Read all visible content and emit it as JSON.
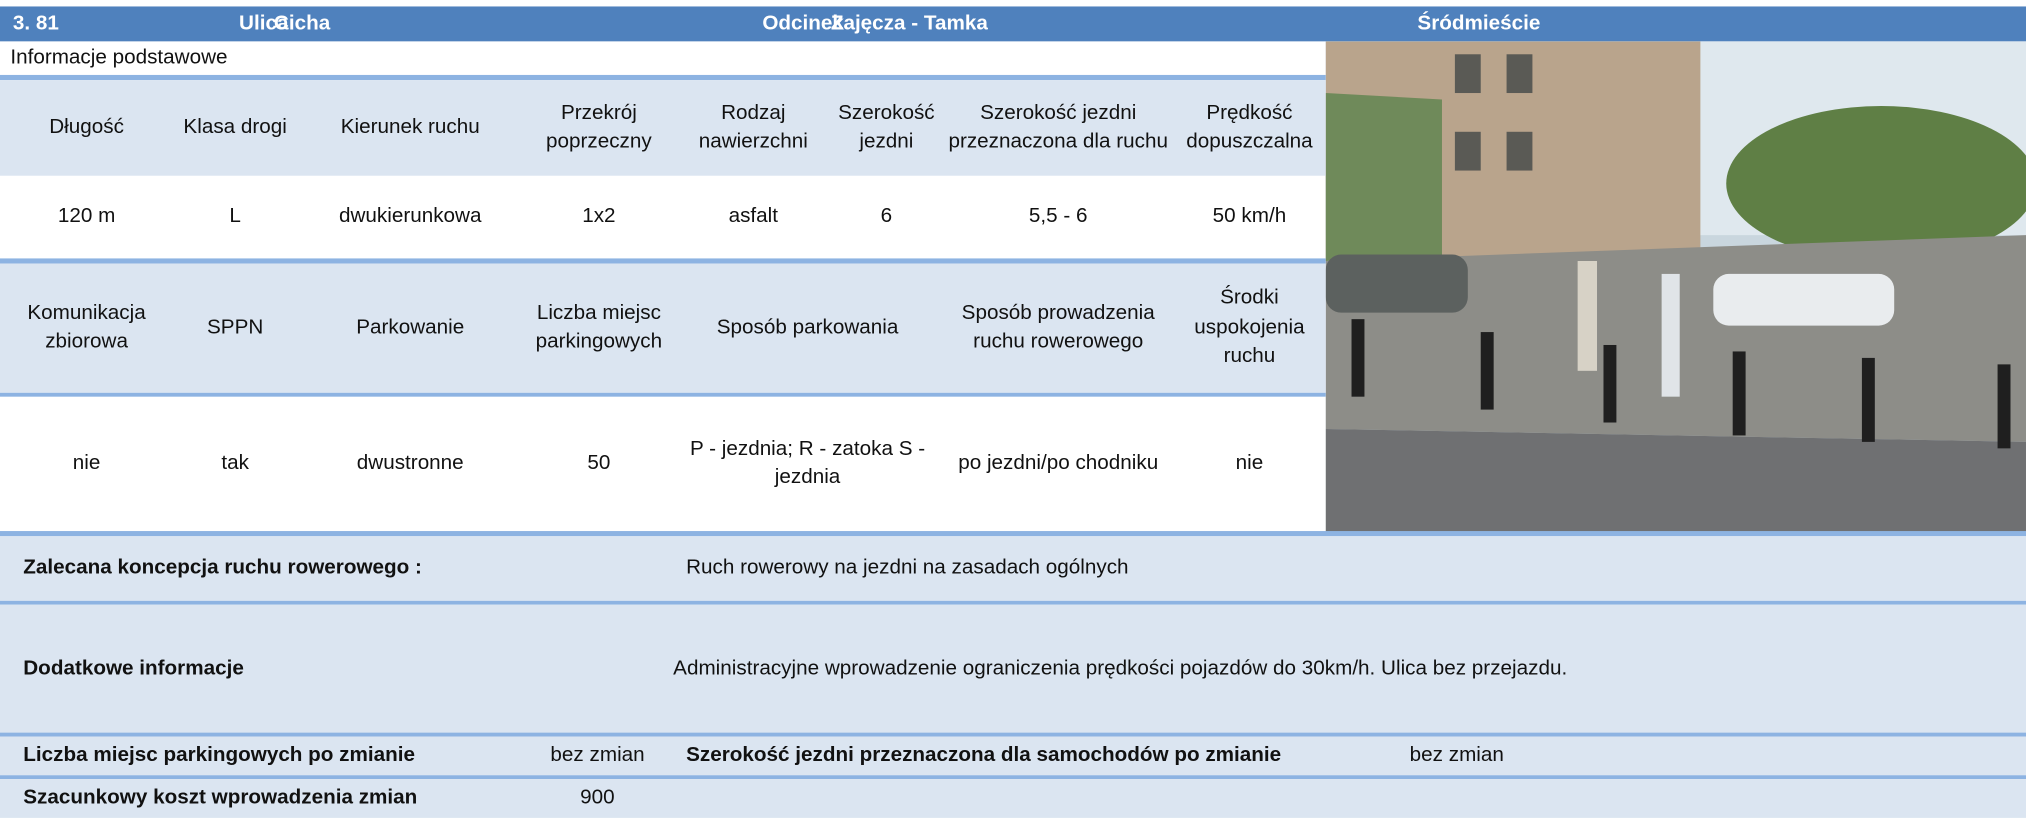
{
  "header": {
    "number": "3. 81",
    "street_label": "Ulica",
    "street": "Cicha",
    "section_label": "Odcinek",
    "section": "Zajęcza - Tamka",
    "district": "Śródmieście"
  },
  "basic_info_title": "Informacje podstawowe",
  "table": {
    "rows": [
      [
        "Długość",
        "Klasa drogi",
        "Kierunek ruchu",
        "Przekrój poprzeczny",
        "Rodzaj nawierzchni",
        "Szerokość jezdni",
        "Szerokość jezdni przeznaczona dla ruchu",
        "Prędkość dopuszczalna"
      ],
      [
        "120 m",
        "L",
        "dwukierunkowa",
        "1x2",
        "asfalt",
        "6",
        "5,5 - 6",
        "50 km/h"
      ],
      [
        "Komunikacja zbiorowa",
        "SPPN",
        "Parkowanie",
        "Liczba miejsc parkingowych",
        "Sposób parkowania",
        "Sposób prowadzenia ruchu rowerowego",
        "Środki uspokojenia ruchu"
      ],
      [
        "nie",
        "tak",
        "dwustronne",
        "50",
        "P - jezdnia; R - zatoka S - jezdnia",
        "po jezdni/po chodniku",
        "nie"
      ]
    ]
  },
  "details": {
    "recommended_label": "Zalecana koncepcja ruchu rowerowego :",
    "recommended_value": "Ruch rowerowy na jezdni na zasadach ogólnych",
    "additional_label": "Dodatkowe informacje",
    "additional_value": "Administracyjne wprowadzenie ograniczenia prędkości pojazdów do 30km/h. Ulica bez przejazdu.",
    "parking_after_label": "Liczba miejsc parkingowych po zmianie",
    "parking_after_value": "bez zmian",
    "width_after_label": "Szerokość jezdni przeznaczona dla samochodów po zmianie",
    "width_after_value": "bez zmian",
    "cost_label": "Szacunkowy koszt wprowadzenia zmian",
    "cost_value": "900"
  }
}
